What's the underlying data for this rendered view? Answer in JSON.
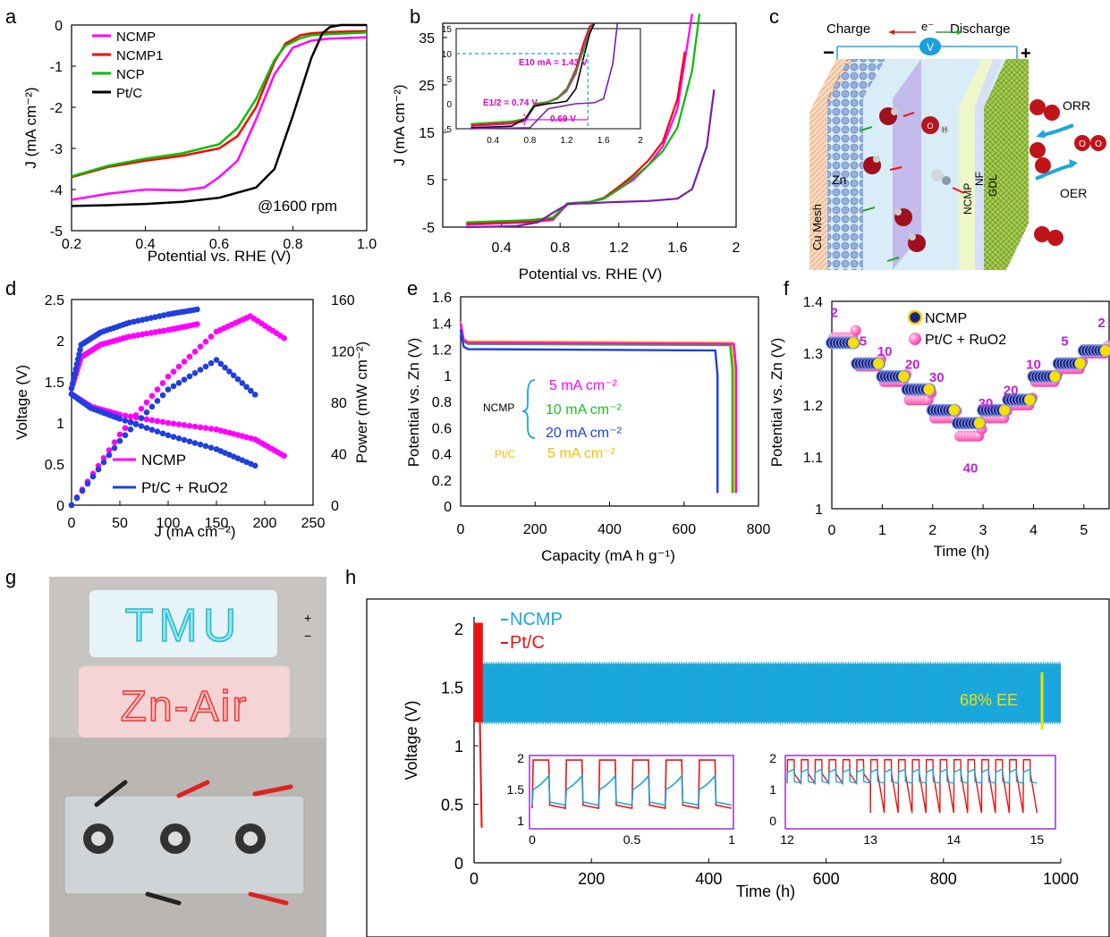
{
  "colors": {
    "ncmp": "#ff00ff",
    "ncmp1": "#ff0000",
    "ncp": "#00c000",
    "ptc": "#000000",
    "purple": "#7a1fa8",
    "blue": "#1f3fe0",
    "cyan": "#1aa7dc",
    "red": "#ee1111",
    "green": "#22bb22",
    "yellow": "#f5c000",
    "magenta": "#ff44cc",
    "navy": "#1a237e",
    "ee": "#f0e000"
  },
  "panels": {
    "a": "a",
    "b": "b",
    "c": "c",
    "d": "d",
    "e": "e",
    "f": "f",
    "g": "g",
    "h": "h"
  },
  "chart_data": [
    {
      "panel": "a",
      "type": "line",
      "xlabel": "Potential vs. RHE (V)",
      "ylabel": "J (mA cm⁻²)",
      "xlim": [
        0.2,
        1.0
      ],
      "ylim": [
        -5,
        0
      ],
      "xticks": [
        "0.2",
        "0.4",
        "0.6",
        "0.8",
        "1.0"
      ],
      "yticks": [
        "0",
        "-1",
        "-2",
        "-3",
        "-4",
        "-5"
      ],
      "annotation": "@1600 rpm",
      "legend": "top-left",
      "series": [
        {
          "name": "NCMP",
          "x": [
            0.2,
            0.3,
            0.4,
            0.5,
            0.56,
            0.6,
            0.65,
            0.7,
            0.75,
            0.8,
            0.85,
            0.9,
            1.0
          ],
          "y": [
            -4.25,
            -4.1,
            -4.0,
            -4.02,
            -3.95,
            -3.7,
            -3.3,
            -2.3,
            -1.2,
            -0.55,
            -0.38,
            -0.33,
            -0.3
          ]
        },
        {
          "name": "NCMP1",
          "x": [
            0.2,
            0.3,
            0.4,
            0.5,
            0.6,
            0.65,
            0.7,
            0.75,
            0.78,
            0.82,
            0.85,
            0.9,
            1.0
          ],
          "y": [
            -3.7,
            -3.45,
            -3.3,
            -3.18,
            -3.0,
            -2.7,
            -2.0,
            -0.9,
            -0.45,
            -0.25,
            -0.2,
            -0.17,
            -0.15
          ]
        },
        {
          "name": "NCP",
          "x": [
            0.2,
            0.3,
            0.4,
            0.5,
            0.6,
            0.65,
            0.7,
            0.75,
            0.78,
            0.82,
            0.85,
            0.9,
            1.0
          ],
          "y": [
            -3.68,
            -3.42,
            -3.25,
            -3.12,
            -2.9,
            -2.5,
            -1.8,
            -0.85,
            -0.5,
            -0.32,
            -0.25,
            -0.22,
            -0.18
          ]
        },
        {
          "name": "Pt/C",
          "x": [
            0.2,
            0.3,
            0.4,
            0.5,
            0.6,
            0.7,
            0.75,
            0.8,
            0.85,
            0.88,
            0.9,
            0.93,
            1.0
          ],
          "y": [
            -4.4,
            -4.38,
            -4.35,
            -4.3,
            -4.2,
            -3.95,
            -3.5,
            -2.2,
            -0.8,
            -0.2,
            -0.05,
            0,
            0
          ]
        }
      ]
    },
    {
      "panel": "b",
      "type": "line",
      "xlabel": "Potential vs. RHE (V)",
      "ylabel": "J (mA cm⁻²)",
      "xlim": [
        0,
        2
      ],
      "ylim": [
        -5,
        38
      ],
      "xticks": [
        "0.4",
        "0.8",
        "1.2",
        "1.6",
        "2"
      ],
      "yticks": [
        "35",
        "25",
        "15",
        "5",
        "-5"
      ],
      "series": [
        {
          "name": "NCMP",
          "x": [
            0.16,
            0.6,
            0.75,
            0.85,
            1.0,
            1.1,
            1.2,
            1.3,
            1.4,
            1.5,
            1.6,
            1.65,
            1.7
          ],
          "y": [
            -4.5,
            -4,
            -3.5,
            -0.2,
            0.2,
            1,
            3,
            5,
            8,
            12,
            20,
            30,
            40
          ]
        },
        {
          "name": "NCMP1",
          "x": [
            0.16,
            0.6,
            0.75,
            0.85,
            1.0,
            1.1,
            1.2,
            1.3,
            1.4,
            1.5,
            1.6,
            1.65
          ],
          "y": [
            -4.3,
            -3.8,
            -3.2,
            0,
            0.3,
            1.2,
            3.5,
            6,
            9,
            13,
            22,
            32
          ]
        },
        {
          "name": "NCP",
          "x": [
            0.16,
            0.6,
            0.75,
            0.85,
            1.0,
            1.1,
            1.2,
            1.3,
            1.4,
            1.5,
            1.6,
            1.7,
            1.75
          ],
          "y": [
            -4,
            -3.5,
            -3,
            0,
            0.3,
            1,
            3,
            5.5,
            8,
            11,
            16,
            28,
            40
          ]
        },
        {
          "name": "Pt/C",
          "x": [
            0.16,
            0.5,
            0.65,
            0.75,
            0.85,
            0.9,
            1.0,
            1.1,
            1.2,
            1.4,
            1.6,
            1.7,
            1.8,
            1.85
          ],
          "y": [
            -5,
            -4.8,
            -4,
            -2,
            -0.2,
            0,
            0,
            0.2,
            0.3,
            0.5,
            1,
            3,
            12,
            24
          ]
        }
      ],
      "inset": {
        "xlim": [
          0,
          2
        ],
        "ylim": [
          -5,
          15
        ],
        "xticks": [
          "0.4",
          "0.8",
          "1.2",
          "1.6",
          "2"
        ],
        "yticks": [
          "15",
          "10",
          "5",
          "0",
          "-5"
        ],
        "annotations": [
          "E10 mA = 1.43 V",
          "E1/2 = 0.74 V",
          "0.69 V"
        ]
      }
    },
    {
      "panel": "d",
      "type": "line",
      "xlabel": "J (mA cm⁻²)",
      "ylabel": "Voltage (V)",
      "y2label": "Power (mW cm⁻²)",
      "xlim": [
        0,
        250
      ],
      "ylim": [
        0,
        2.5
      ],
      "y2lim": [
        0,
        160
      ],
      "xticks": [
        "0",
        "50",
        "100",
        "150",
        "200",
        "250"
      ],
      "yticks": [
        "0",
        "0.5",
        "1",
        "1.5",
        "2",
        "2.5"
      ],
      "y2ticks": [
        "0",
        "40",
        "80",
        "120",
        "160"
      ],
      "legend": "bottom-left",
      "series": [
        {
          "name": "NCMP",
          "charge_x": [
            0,
            10,
            30,
            60,
            100,
            130
          ],
          "charge_y": [
            1.42,
            1.8,
            1.95,
            2.05,
            2.13,
            2.2
          ],
          "discharge_x": [
            0,
            20,
            50,
            100,
            150,
            190,
            220
          ],
          "discharge_y": [
            1.35,
            1.2,
            1.1,
            1.0,
            0.92,
            0.8,
            0.6
          ],
          "power_x": [
            0,
            50,
            100,
            150,
            185,
            220
          ],
          "power_y": [
            0,
            55,
            100,
            135,
            147,
            130
          ]
        },
        {
          "name": "Pt/C + RuO2",
          "charge_x": [
            0,
            10,
            30,
            60,
            100,
            130
          ],
          "charge_y": [
            1.42,
            1.95,
            2.1,
            2.22,
            2.32,
            2.38
          ],
          "discharge_x": [
            0,
            20,
            50,
            100,
            150,
            190
          ],
          "discharge_y": [
            1.35,
            1.18,
            1.05,
            0.85,
            0.68,
            0.48
          ],
          "power_x": [
            0,
            50,
            100,
            150,
            190
          ],
          "power_y": [
            0,
            50,
            90,
            113,
            86
          ]
        }
      ]
    },
    {
      "panel": "e",
      "type": "line",
      "xlabel": "Capacity (mA h g⁻¹)",
      "ylabel": "Potential vs. Zn (V)",
      "xlim": [
        0,
        800
      ],
      "ylim": [
        0,
        1.6
      ],
      "xticks": [
        "0",
        "200",
        "400",
        "600",
        "800"
      ],
      "yticks": [
        "0",
        "0.2",
        "0.4",
        "0.6",
        "0.8",
        "1",
        "1.2",
        "1.4",
        "1.6"
      ],
      "group_label": "NCMP",
      "ptc_label": "Pt/C",
      "series": [
        {
          "name": "5 mA cm⁻²",
          "sample": "NCMP",
          "plateau": 1.25,
          "capacity": 740
        },
        {
          "name": "10 mA cm⁻²",
          "sample": "NCMP",
          "plateau": 1.24,
          "capacity": 730
        },
        {
          "name": "20 mA cm⁻²",
          "sample": "NCMP",
          "plateau": 1.2,
          "capacity": 690
        },
        {
          "name": "5 mA cm⁻²",
          "sample": "Pt/C",
          "plateau": 1.26,
          "capacity": 735
        }
      ]
    },
    {
      "panel": "f",
      "type": "scatter",
      "xlabel": "Time (h)",
      "ylabel": "Potential vs. Zn (V)",
      "xlim": [
        0,
        5.5
      ],
      "ylim": [
        1,
        1.4
      ],
      "xticks": [
        "0",
        "1",
        "2",
        "3",
        "4",
        "5"
      ],
      "yticks": [
        "1",
        "1.1",
        "1.2",
        "1.3",
        "1.4"
      ],
      "legend": "top-center",
      "step_labels": [
        {
          "t": 0.05,
          "v": 1.37,
          "text": "2"
        },
        {
          "t": 0.62,
          "v": 1.315,
          "text": "5"
        },
        {
          "t": 1.05,
          "v": 1.295,
          "text": "10"
        },
        {
          "t": 1.6,
          "v": 1.27,
          "text": "20"
        },
        {
          "t": 2.08,
          "v": 1.245,
          "text": "30"
        },
        {
          "t": 2.75,
          "v": 1.07,
          "text": "40"
        },
        {
          "t": 3.05,
          "v": 1.195,
          "text": "30"
        },
        {
          "t": 3.55,
          "v": 1.22,
          "text": "20"
        },
        {
          "t": 4.0,
          "v": 1.27,
          "text": "10"
        },
        {
          "t": 4.62,
          "v": 1.315,
          "text": "5"
        },
        {
          "t": 5.35,
          "v": 1.35,
          "text": "2"
        }
      ],
      "series": [
        {
          "name": "NCMP",
          "steps_h": [
            0,
            0.5,
            1,
            1.5,
            2,
            2.5,
            3,
            3.5,
            4,
            4.5,
            5,
            5.5
          ],
          "v": [
            1.32,
            1.28,
            1.255,
            1.23,
            1.19,
            1.165,
            1.19,
            1.21,
            1.255,
            1.28,
            1.305
          ]
        },
        {
          "name": "Pt/C + RuO2",
          "steps_h": [
            0,
            0.5,
            1,
            1.5,
            2,
            2.5,
            3,
            3.5,
            4,
            4.5,
            5,
            5.5
          ],
          "v": [
            1.33,
            1.275,
            1.245,
            1.21,
            1.175,
            1.14,
            1.175,
            1.2,
            1.245,
            1.27,
            1.3
          ]
        }
      ]
    },
    {
      "panel": "h",
      "type": "line",
      "xlabel": "Time (h)",
      "ylabel": "Voltage (V)",
      "xlim": [
        0,
        1000
      ],
      "ylim": [
        0,
        2.1
      ],
      "xticks": [
        "0",
        "200",
        "400",
        "600",
        "800",
        "1000"
      ],
      "yticks": [
        "0",
        "0.5",
        "1",
        "1.5",
        "2"
      ],
      "annotation": "68% EE",
      "series": [
        {
          "name": "NCMP",
          "charge_v": 1.7,
          "discharge_v": 1.2,
          "duration_h": 1000
        },
        {
          "name": "Pt/C",
          "charge_v": 2.0,
          "discharge_v": 0.3,
          "duration_h": 15
        }
      ],
      "insets": [
        {
          "xlim": [
            0,
            1
          ],
          "ylim": [
            1,
            2
          ],
          "xticks": [
            "0",
            "0.5",
            "1"
          ],
          "yticks": [
            "1",
            "1.5",
            "2"
          ]
        },
        {
          "xlim": [
            12,
            15.2
          ],
          "ylim": [
            0,
            2
          ],
          "xticks": [
            "12",
            "13",
            "14",
            "15"
          ],
          "yticks": [
            "0",
            "1",
            "2"
          ]
        }
      ]
    }
  ],
  "diagram_c": {
    "top": {
      "charge": "Charge",
      "electron": "e⁻",
      "discharge": "Discharge",
      "volt": "V",
      "minus": "−",
      "plus": "+"
    },
    "labels": {
      "cu_mesh": "Cu Mesh",
      "zn": "Zn",
      "ncmp": "NCMP",
      "nf": "NF",
      "gdl": "GDL",
      "orr": "ORR",
      "oer": "OER"
    },
    "molecule": {
      "o": "O",
      "h": "H"
    }
  },
  "photo_g": {
    "sign1": "TMU",
    "sign2": "Zn-Air",
    "plus_mark": "+",
    "minus_mark": "−"
  }
}
